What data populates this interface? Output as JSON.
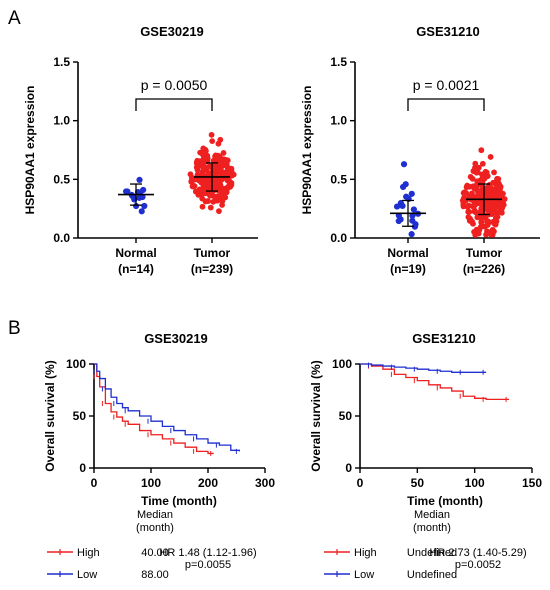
{
  "panel_labels": [
    "A",
    "B"
  ],
  "chart_data": [
    {
      "type": "scatter",
      "subtype": "dot-plot",
      "title": "GSE30219",
      "ylabel": "HSP90AA1 expression",
      "ylim": [
        0,
        1.5
      ],
      "yticks": [
        "0.0",
        "0.5",
        "1.0",
        "1.5"
      ],
      "categories": [
        {
          "name": "Normal",
          "n_label": "(n=14)",
          "n": 14,
          "color": "#1f2fd0",
          "mean": 0.37,
          "sd": 0.09
        },
        {
          "name": "Tumor",
          "n_label": "(n=239)",
          "n": 239,
          "color": "#ee2020",
          "mean": 0.52,
          "sd": 0.12
        }
      ],
      "annotation": "p = 0.0050"
    },
    {
      "type": "scatter",
      "subtype": "dot-plot",
      "title": "GSE31210",
      "ylabel": "HSP90AA1 expression",
      "ylim": [
        0,
        1.5
      ],
      "yticks": [
        "0.0",
        "0.5",
        "1.0",
        "1.5"
      ],
      "categories": [
        {
          "name": "Normal",
          "n_label": "(n=19)",
          "n": 19,
          "color": "#1f2fd0",
          "mean": 0.21,
          "sd": 0.11
        },
        {
          "name": "Tumor",
          "n_label": "(n=226)",
          "n": 226,
          "color": "#ee2020",
          "mean": 0.33,
          "sd": 0.13
        }
      ],
      "annotation": "p = 0.0021"
    },
    {
      "type": "line",
      "subtype": "kaplan-meier",
      "title": "GSE30219",
      "xlabel": "Time (month)",
      "ylabel": "Overall survival (%)",
      "xlim": [
        0,
        300
      ],
      "ylim": [
        0,
        100
      ],
      "xticks": [
        "0",
        "100",
        "200",
        "300"
      ],
      "yticks": [
        "0",
        "50",
        "100"
      ],
      "series": [
        {
          "name": "High",
          "color": "#ee2020",
          "x": [
            0,
            5,
            10,
            20,
            30,
            40,
            50,
            60,
            80,
            100,
            120,
            140,
            160,
            180,
            200,
            210
          ],
          "y": [
            100,
            88,
            78,
            62,
            54,
            49,
            45,
            42,
            36,
            32,
            28,
            24,
            20,
            16,
            14,
            14
          ]
        },
        {
          "name": "Low",
          "color": "#1f2fd0",
          "x": [
            0,
            5,
            10,
            20,
            30,
            40,
            50,
            60,
            80,
            100,
            120,
            140,
            160,
            180,
            200,
            220,
            240,
            255
          ],
          "y": [
            100,
            93,
            86,
            76,
            68,
            62,
            58,
            55,
            50,
            45,
            40,
            36,
            32,
            28,
            24,
            22,
            17,
            16
          ]
        }
      ],
      "median_header": "Median",
      "median_unit": "(month)",
      "legend": [
        {
          "label": "High",
          "median": "40.00"
        },
        {
          "label": "Low",
          "median": "88.00"
        }
      ],
      "hr": "HR 1.48 (1.12-1.96)",
      "p": "p=0.0055"
    },
    {
      "type": "line",
      "subtype": "kaplan-meier",
      "title": "GSE31210",
      "xlabel": "Time (month)",
      "ylabel": "Overall survival (%)",
      "xlim": [
        0,
        150
      ],
      "ylim": [
        0,
        100
      ],
      "xticks": [
        "0",
        "50",
        "100",
        "150"
      ],
      "yticks": [
        "0",
        "50",
        "100"
      ],
      "series": [
        {
          "name": "High",
          "color": "#ee2020",
          "x": [
            0,
            10,
            20,
            30,
            40,
            50,
            60,
            70,
            80,
            90,
            100,
            110,
            120,
            130
          ],
          "y": [
            100,
            98,
            95,
            90,
            87,
            84,
            80,
            77,
            74,
            69,
            67,
            66,
            66,
            66
          ]
        },
        {
          "name": "Low",
          "color": "#1f2fd0",
          "x": [
            0,
            10,
            20,
            30,
            40,
            50,
            60,
            70,
            80,
            90,
            100,
            110
          ],
          "y": [
            100,
            99,
            98,
            97,
            96,
            95,
            94,
            93,
            92,
            92,
            92,
            92
          ]
        }
      ],
      "median_header": "Median",
      "median_unit": "(month)",
      "legend": [
        {
          "label": "High",
          "median": "Undefined"
        },
        {
          "label": "Low",
          "median": "Undefined"
        }
      ],
      "hr": "HR 2.73 (1.40-5.29)",
      "p": "p=0.0052"
    }
  ]
}
